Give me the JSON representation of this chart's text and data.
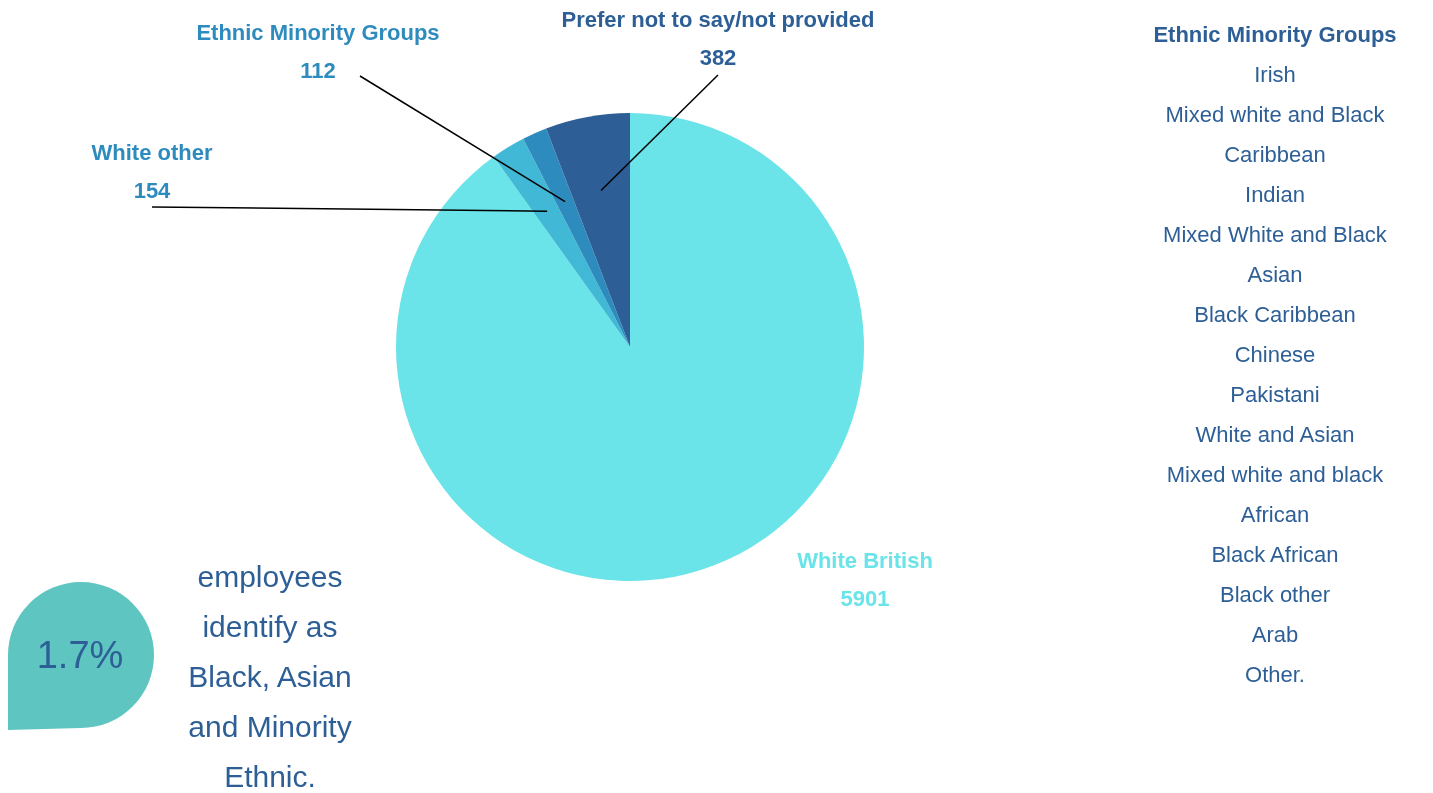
{
  "chart_data": [
    {
      "type": "pie",
      "categories": [
        "White British",
        "White other",
        "Ethnic Minority Groups",
        "Prefer not to say/not provided"
      ],
      "values": [
        5901,
        154,
        112,
        382
      ],
      "colors": [
        "#6ae4e8",
        "#41b8d5",
        "#2e8bbd",
        "#2d5f96"
      ],
      "data_labels": true
    },
    {
      "type": "other",
      "title": "Ethnic Minority Groups",
      "annotations": [
        "Irish",
        "Mixed white and Black Caribbean",
        "Indian",
        "Mixed White and Black Asian",
        "Black Caribbean",
        "Chinese",
        "Pakistani",
        "White and Asian",
        "Mixed white and black African",
        "Black African",
        "Black other",
        "Arab",
        "Other."
      ]
    },
    {
      "type": "other",
      "annotations": [
        "1.7%",
        "employees identify as Black, Asian and Minority Ethnic."
      ]
    }
  ]
}
